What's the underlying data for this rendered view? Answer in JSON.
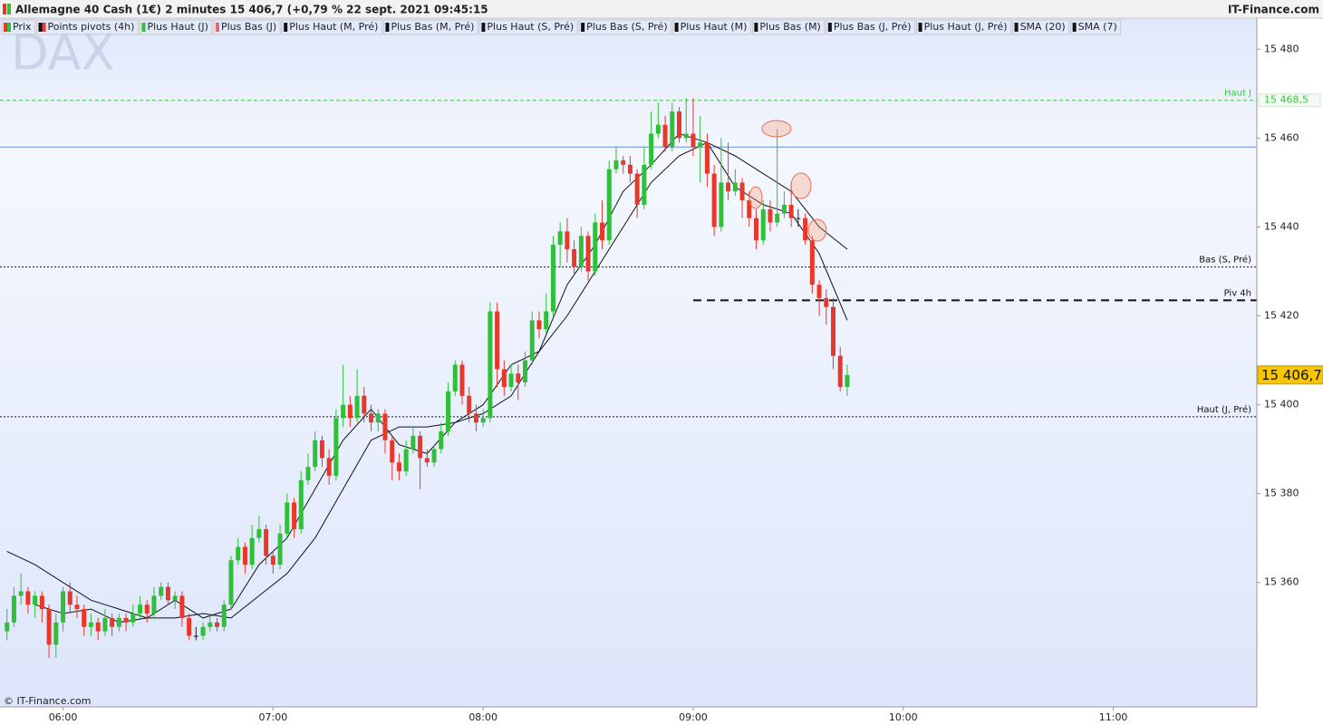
{
  "header": {
    "title": "Allemagne 40 Cash (1€) 2 minutes 15 406,7 (+0,79 % 22 sept. 2021 09:45:15",
    "brand": "IT-Finance.com"
  },
  "footer": "© IT-Finance.com",
  "chart_data": {
    "type": "candlestick",
    "watermark": "DAX",
    "legend": [
      {
        "name": "Prix",
        "colors": [
          "#e8382c",
          "#2fbf3a"
        ]
      },
      {
        "name": "Points pivots (4h)",
        "colors": [
          "#111111",
          "#e8382c"
        ]
      },
      {
        "name": "Plus Haut (J)",
        "colors": [
          "#2fbf3a"
        ]
      },
      {
        "name": "Plus Bas (J)",
        "colors": [
          "#e86a6a"
        ]
      },
      {
        "name": "Plus Haut (M, Pré)",
        "colors": [
          "#111111"
        ]
      },
      {
        "name": "Plus Bas (M, Pré)",
        "colors": [
          "#111111"
        ]
      },
      {
        "name": "Plus Haut (S, Pré)",
        "colors": [
          "#111111"
        ]
      },
      {
        "name": "Plus Bas (S, Pré)",
        "colors": [
          "#111111"
        ]
      },
      {
        "name": "Plus Haut (M)",
        "colors": [
          "#111111"
        ]
      },
      {
        "name": "Plus Bas (M)",
        "colors": [
          "#111111"
        ]
      },
      {
        "name": "Plus Bas (J, Pré)",
        "colors": [
          "#111111"
        ]
      },
      {
        "name": "Plus Haut (J, Pré)",
        "colors": [
          "#111111"
        ]
      },
      {
        "name": "SMA (20)",
        "colors": [
          "#111111"
        ]
      },
      {
        "name": "SMA (7)",
        "colors": [
          "#111111"
        ]
      }
    ],
    "up_color": "#2fbf3a",
    "down_color": "#e8382c",
    "xlim": [
      "05:42",
      "11:41"
    ],
    "xticks": [
      "06:00",
      "07:00",
      "08:00",
      "09:00",
      "10:00",
      "11:00"
    ],
    "ylim": [
      15332,
      15487
    ],
    "yticks": [
      {
        "value": 15360,
        "label": "15 360"
      },
      {
        "value": 15380,
        "label": "15 380"
      },
      {
        "value": 15400,
        "label": "15 400"
      },
      {
        "value": 15420,
        "label": "15 420"
      },
      {
        "value": 15440,
        "label": "15 440"
      },
      {
        "value": 15460,
        "label": "15 460"
      },
      {
        "value": 15480,
        "label": "15 480"
      }
    ],
    "x": [
      "05:44",
      "05:46",
      "05:48",
      "05:50",
      "05:52",
      "05:54",
      "05:56",
      "05:58",
      "06:00",
      "06:02",
      "06:04",
      "06:06",
      "06:08",
      "06:10",
      "06:12",
      "06:14",
      "06:16",
      "06:18",
      "06:20",
      "06:22",
      "06:24",
      "06:26",
      "06:28",
      "06:30",
      "06:32",
      "06:34",
      "06:36",
      "06:38",
      "06:40",
      "06:42",
      "06:44",
      "06:46",
      "06:48",
      "06:50",
      "06:52",
      "06:54",
      "06:56",
      "06:58",
      "07:00",
      "07:02",
      "07:04",
      "07:06",
      "07:08",
      "07:10",
      "07:12",
      "07:14",
      "07:16",
      "07:18",
      "07:20",
      "07:22",
      "07:24",
      "07:26",
      "07:28",
      "07:30",
      "07:32",
      "07:34",
      "07:36",
      "07:38",
      "07:40",
      "07:42",
      "07:44",
      "07:46",
      "07:48",
      "07:50",
      "07:52",
      "07:54",
      "07:56",
      "07:58",
      "08:00",
      "08:02",
      "08:04",
      "08:06",
      "08:08",
      "08:10",
      "08:12",
      "08:14",
      "08:16",
      "08:18",
      "08:20",
      "08:22",
      "08:24",
      "08:26",
      "08:28",
      "08:30",
      "08:32",
      "08:34",
      "08:36",
      "08:38",
      "08:40",
      "08:42",
      "08:44",
      "08:46",
      "08:48",
      "08:50",
      "08:52",
      "08:54",
      "08:56",
      "08:58",
      "09:00",
      "09:02",
      "09:04",
      "09:06",
      "09:08",
      "09:10",
      "09:12",
      "09:14",
      "09:16",
      "09:18",
      "09:20",
      "09:22",
      "09:24",
      "09:26",
      "09:28",
      "09:30",
      "09:32",
      "09:34",
      "09:36",
      "09:38",
      "09:40",
      "09:42",
      "09:44"
    ],
    "candles": [
      [
        15349,
        15354,
        15347,
        15351
      ],
      [
        15351,
        15359,
        15350,
        15357
      ],
      [
        15357,
        15362,
        15355,
        15358
      ],
      [
        15358,
        15359,
        15353,
        15355
      ],
      [
        15355,
        15358,
        15352,
        15357
      ],
      [
        15357,
        15358,
        15351,
        15354
      ],
      [
        15354,
        15355,
        15343,
        15346
      ],
      [
        15346,
        15353,
        15343,
        15351
      ],
      [
        15351,
        15359,
        15349,
        15358
      ],
      [
        15358,
        15360,
        15353,
        15355
      ],
      [
        15355,
        15357,
        15352,
        15354
      ],
      [
        15354,
        15355,
        15348,
        15350
      ],
      [
        15350,
        15353,
        15348,
        15351
      ],
      [
        15351,
        15352,
        15347,
        15349
      ],
      [
        15349,
        15354,
        15348,
        15352
      ],
      [
        15352,
        15353,
        15348,
        15350
      ],
      [
        15350,
        15353,
        15349,
        15352
      ],
      [
        15352,
        15353,
        15349,
        15351
      ],
      [
        15351,
        15355,
        15350,
        15353
      ],
      [
        15353,
        15357,
        15352,
        15355
      ],
      [
        15355,
        15356,
        15351,
        15353
      ],
      [
        15353,
        15359,
        15352,
        15357
      ],
      [
        15357,
        15360,
        15356,
        15359
      ],
      [
        15359,
        15360,
        15355,
        15356
      ],
      [
        15356,
        15358,
        15354,
        15357
      ],
      [
        15357,
        15358,
        15350,
        15352
      ],
      [
        15352,
        15353,
        15347,
        15348
      ],
      [
        15348,
        15350,
        15347,
        15348
      ],
      [
        15348,
        15351,
        15347,
        15350
      ],
      [
        15350,
        15353,
        15349,
        15351
      ],
      [
        15351,
        15352,
        15349,
        15350
      ],
      [
        15350,
        15356,
        15349,
        15355
      ],
      [
        15355,
        15366,
        15354,
        15365
      ],
      [
        15365,
        15370,
        15364,
        15368
      ],
      [
        15368,
        15369,
        15362,
        15364
      ],
      [
        15364,
        15373,
        15363,
        15370
      ],
      [
        15370,
        15375,
        15369,
        15372
      ],
      [
        15372,
        15373,
        15364,
        15366
      ],
      [
        15366,
        15367,
        15362,
        15364
      ],
      [
        15364,
        15373,
        15363,
        15371
      ],
      [
        15371,
        15380,
        15370,
        15378
      ],
      [
        15378,
        15379,
        15370,
        15372
      ],
      [
        15372,
        15385,
        15371,
        15383
      ],
      [
        15383,
        15389,
        15382,
        15386
      ],
      [
        15386,
        15394,
        15385,
        15392
      ],
      [
        15392,
        15393,
        15386,
        15388
      ],
      [
        15388,
        15390,
        15382,
        15384
      ],
      [
        15384,
        15399,
        15383,
        15397
      ],
      [
        15397,
        15409,
        15395,
        15400
      ],
      [
        15400,
        15402,
        15395,
        15397
      ],
      [
        15397,
        15408,
        15396,
        15402
      ],
      [
        15402,
        15404,
        15396,
        15398
      ],
      [
        15398,
        15400,
        15394,
        15396
      ],
      [
        15396,
        15399,
        15394,
        15398
      ],
      [
        15398,
        15399,
        15389,
        15392
      ],
      [
        15392,
        15393,
        15383,
        15387
      ],
      [
        15387,
        15389,
        15383,
        15385
      ],
      [
        15385,
        15392,
        15384,
        15390
      ],
      [
        15390,
        15395,
        15389,
        15393
      ],
      [
        15393,
        15394,
        15381,
        15388
      ],
      [
        15388,
        15390,
        15386,
        15387
      ],
      [
        15387,
        15391,
        15386,
        15390
      ],
      [
        15390,
        15396,
        15389,
        15394
      ],
      [
        15394,
        15405,
        15393,
        15403
      ],
      [
        15403,
        15410,
        15402,
        15409
      ],
      [
        15409,
        15410,
        15400,
        15402
      ],
      [
        15402,
        15404,
        15396,
        15398
      ],
      [
        15398,
        15400,
        15394,
        15396
      ],
      [
        15396,
        15399,
        15395,
        15397
      ],
      [
        15397,
        15423,
        15396,
        15421
      ],
      [
        15421,
        15423,
        15404,
        15408
      ],
      [
        15408,
        15410,
        15402,
        15404
      ],
      [
        15404,
        15409,
        15403,
        15407
      ],
      [
        15407,
        15409,
        15401,
        15405
      ],
      [
        15405,
        15412,
        15404,
        15410
      ],
      [
        15410,
        15421,
        15409,
        15419
      ],
      [
        15419,
        15421,
        15415,
        15417
      ],
      [
        15417,
        15425,
        15416,
        15421
      ],
      [
        15421,
        15438,
        15420,
        15436
      ],
      [
        15436,
        15441,
        15431,
        15439
      ],
      [
        15439,
        15442,
        15432,
        15435
      ],
      [
        15435,
        15437,
        15429,
        15431
      ],
      [
        15431,
        15440,
        15430,
        15438
      ],
      [
        15438,
        15439,
        15428,
        15430
      ],
      [
        15430,
        15443,
        15429,
        15441
      ],
      [
        15441,
        15446,
        15435,
        15437
      ],
      [
        15437,
        15455,
        15436,
        15453
      ],
      [
        15453,
        15458,
        15452,
        15455
      ],
      [
        15455,
        15456,
        15452,
        15454
      ],
      [
        15454,
        15456,
        15450,
        15452
      ],
      [
        15452,
        15453,
        15442,
        15445
      ],
      [
        15445,
        15458,
        15444,
        15454
      ],
      [
        15454,
        15466,
        15453,
        15461
      ],
      [
        15461,
        15468,
        15460,
        15463
      ],
      [
        15463,
        15465,
        15457,
        15458
      ],
      [
        15458,
        15468,
        15457,
        15466
      ],
      [
        15466,
        15467,
        15459,
        15460
      ],
      [
        15460,
        15469,
        15459,
        15461
      ],
      [
        15461,
        15469,
        15456,
        15458
      ],
      [
        15458,
        15465,
        15450,
        15459
      ],
      [
        15459,
        15461,
        15449,
        15452
      ],
      [
        15452,
        15454,
        15438,
        15440
      ],
      [
        15440,
        15460,
        15439,
        15450
      ],
      [
        15450,
        15459,
        15446,
        15448
      ],
      [
        15448,
        15453,
        15447,
        15450
      ],
      [
        15450,
        15451,
        15442,
        15446
      ],
      [
        15446,
        15448,
        15440,
        15442
      ],
      [
        15442,
        15444,
        15435,
        15437
      ],
      [
        15437,
        15446,
        15436,
        15444
      ],
      [
        15444,
        15446,
        15439,
        15441
      ],
      [
        15441,
        15462,
        15440,
        15443
      ],
      [
        15443,
        15448,
        15442,
        15445
      ],
      [
        15445,
        15450,
        15440,
        15442
      ],
      [
        15442,
        15444,
        15440,
        15442
      ],
      [
        15442,
        15443,
        15436,
        15437
      ],
      [
        15437,
        15438,
        15425,
        15427
      ],
      [
        15427,
        15428,
        15420,
        15424
      ],
      [
        15424,
        15426,
        15418,
        15422
      ],
      [
        15422,
        15424,
        15408,
        15411
      ],
      [
        15411,
        15413,
        15403,
        15404
      ],
      [
        15404,
        15409,
        15402,
        15406.7
      ]
    ],
    "lines": [
      {
        "name": "SMA (7)",
        "color": "#111111",
        "x": [
          "05:52",
          "06:00",
          "06:08",
          "06:16",
          "06:24",
          "06:32",
          "06:40",
          "06:48",
          "06:56",
          "07:04",
          "07:12",
          "07:20",
          "07:28",
          "07:36",
          "07:44",
          "07:52",
          "08:00",
          "08:08",
          "08:16",
          "08:24",
          "08:32",
          "08:40",
          "08:48",
          "08:56",
          "09:04",
          "09:12",
          "09:20",
          "09:28",
          "09:36",
          "09:44"
        ],
        "values": [
          15355,
          15353,
          15354,
          15351,
          15352,
          15356,
          15352,
          15354,
          15364,
          15370,
          15381,
          15392,
          15399,
          15391,
          15389,
          15396,
          15400,
          15409,
          15412,
          15427,
          15436,
          15448,
          15454,
          15461,
          15459,
          15449,
          15445,
          15443,
          15434,
          15419
        ]
      },
      {
        "name": "SMA (20)",
        "color": "#111111",
        "x": [
          "05:44",
          "05:52",
          "06:00",
          "06:08",
          "06:16",
          "06:24",
          "06:32",
          "06:40",
          "06:48",
          "06:56",
          "07:04",
          "07:12",
          "07:20",
          "07:28",
          "07:36",
          "07:44",
          "07:52",
          "08:00",
          "08:08",
          "08:16",
          "08:24",
          "08:32",
          "08:40",
          "08:48",
          "08:56",
          "09:04",
          "09:12",
          "09:20",
          "09:28",
          "09:36",
          "09:44"
        ],
        "values": [
          15367,
          15364,
          15360,
          15356,
          15354,
          15352,
          15352,
          15353,
          15352,
          15357,
          15362,
          15370,
          15381,
          15392,
          15395,
          15395,
          15396,
          15398,
          15402,
          15412,
          15420,
          15430,
          15440,
          15450,
          15456,
          15459,
          15456,
          15452,
          15448,
          15440,
          15435
        ]
      }
    ],
    "levels": [
      {
        "label": "Haut J",
        "value": 15468.5,
        "value_label": "15 468,5",
        "color": "#3cc83c",
        "dash": "4 3",
        "width": 1
      },
      {
        "value": 15458,
        "color": "#6a8fd8",
        "width": 1
      },
      {
        "label": "Bas (S, Pré)",
        "value": 15431,
        "color": "#111111",
        "dash": "2 2",
        "width": 1
      },
      {
        "label": "Piv 4h",
        "value": 15423.5,
        "color": "#111111",
        "dash": "9 6",
        "width": 2,
        "from": "09:00"
      },
      {
        "label": "Haut (J, Pré)",
        "value": 15397.3,
        "color": "#111111",
        "dash": "2 2",
        "width": 1
      }
    ],
    "last_price": 15406.7,
    "last_price_label": "15 406,7"
  }
}
